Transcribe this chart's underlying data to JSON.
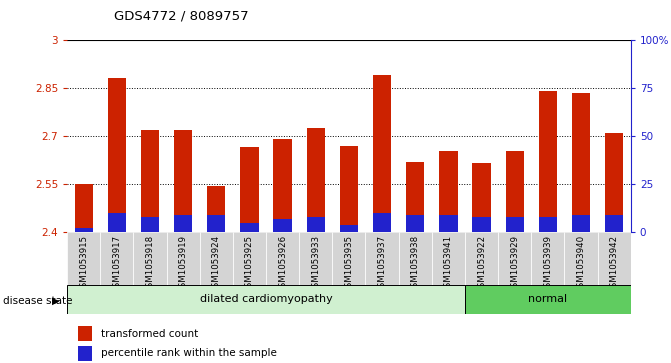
{
  "title": "GDS4772 / 8089757",
  "samples": [
    "GSM1053915",
    "GSM1053917",
    "GSM1053918",
    "GSM1053919",
    "GSM1053924",
    "GSM1053925",
    "GSM1053926",
    "GSM1053933",
    "GSM1053935",
    "GSM1053937",
    "GSM1053938",
    "GSM1053941",
    "GSM1053922",
    "GSM1053929",
    "GSM1053939",
    "GSM1053940",
    "GSM1053942"
  ],
  "transformed_counts": [
    2.55,
    2.88,
    2.72,
    2.72,
    2.545,
    2.665,
    2.69,
    2.725,
    2.67,
    2.89,
    2.62,
    2.655,
    2.615,
    2.655,
    2.84,
    2.835,
    2.71
  ],
  "percentile_ranks": [
    2,
    10,
    8,
    9,
    9,
    5,
    7,
    8,
    4,
    10,
    9,
    9,
    8,
    8,
    8,
    9,
    9
  ],
  "disease_groups": [
    {
      "label": "dilated cardiomyopathy",
      "start": 0,
      "end": 11,
      "color": "#d0f0d0"
    },
    {
      "label": "normal",
      "start": 12,
      "end": 16,
      "color": "#60cc60"
    }
  ],
  "ymin": 2.4,
  "ymax": 3.0,
  "yticks": [
    2.4,
    2.55,
    2.7,
    2.85,
    3.0
  ],
  "ytick_labels": [
    "2.4",
    "2.55",
    "2.7",
    "2.85",
    "3"
  ],
  "right_yticks": [
    0,
    25,
    50,
    75,
    100
  ],
  "right_ytick_labels": [
    "0",
    "25",
    "50",
    "75",
    "100%"
  ],
  "bar_color_red": "#cc2200",
  "bar_color_blue": "#2222cc",
  "bar_width": 0.55,
  "bg_color": "#ffffff",
  "left_axis_color": "#cc2200",
  "right_axis_color": "#2222cc",
  "disease_label": "disease state",
  "legend_red": "transformed count",
  "legend_blue": "percentile rank within the sample",
  "label_bg_color": "#d4d4d4"
}
